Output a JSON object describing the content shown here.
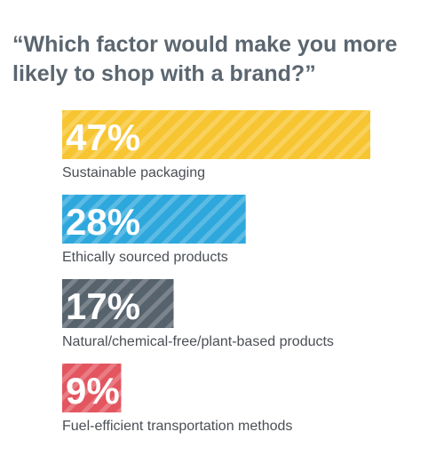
{
  "title": "“Which factor would make you more likely to shop with a brand?”",
  "chart_data": {
    "type": "bar",
    "orientation": "horizontal",
    "title": "“Which factor would make you more likely to shop with a brand?”",
    "categories": [
      "Sustainable packaging",
      "Ethically sourced products",
      "Natural/chemical-free/plant-based products",
      "Fuel-efficient transportation methods"
    ],
    "values": [
      47,
      28,
      17,
      9
    ],
    "value_labels": [
      "47%",
      "28%",
      "17%",
      "9%"
    ],
    "unit": "%",
    "colors": [
      "#f7c531",
      "#2ea8dc",
      "#56626c",
      "#e35660"
    ],
    "bar_style": "diagonal-stripes",
    "xlim": [
      0,
      47
    ],
    "grid": false,
    "legend": "none"
  }
}
